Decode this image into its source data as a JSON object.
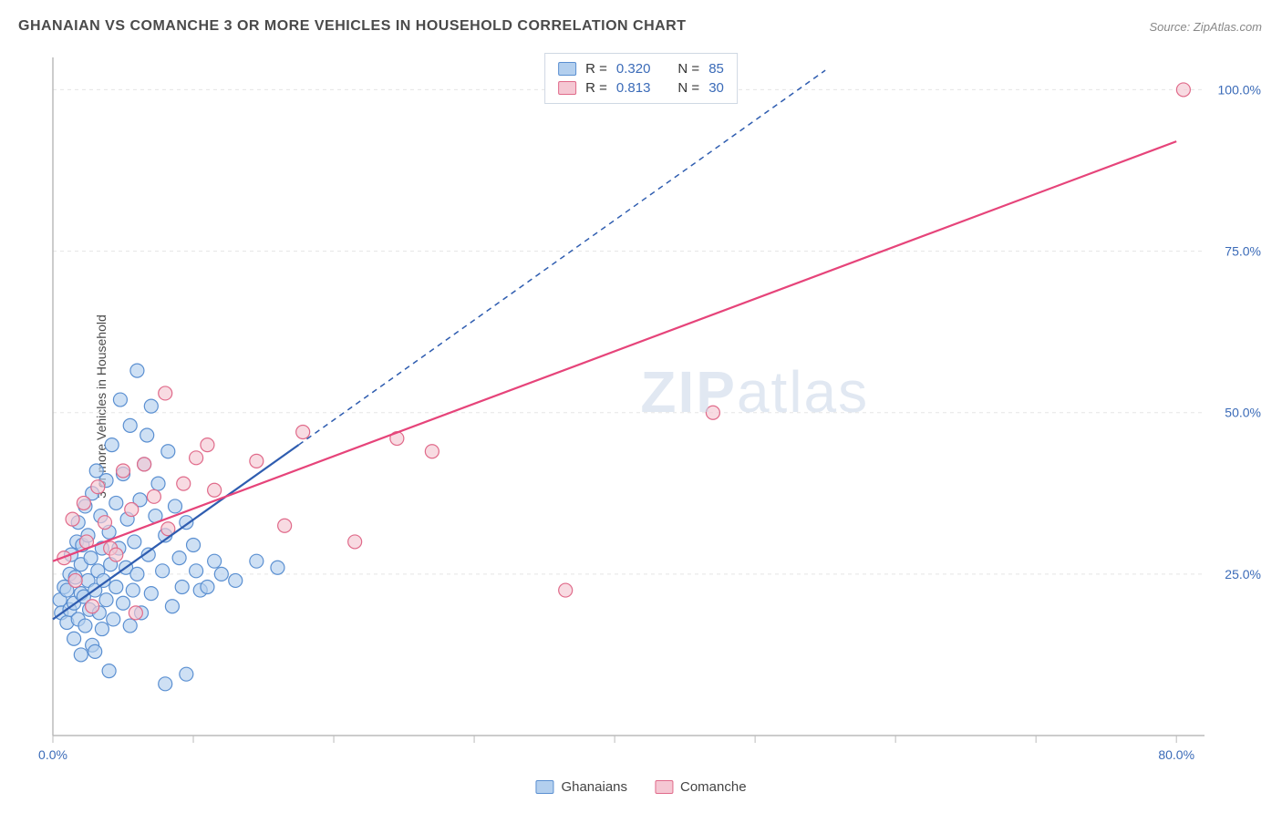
{
  "title": "GHANAIAN VS COMANCHE 3 OR MORE VEHICLES IN HOUSEHOLD CORRELATION CHART",
  "source": "Source: ZipAtlas.com",
  "ylabel": "3 or more Vehicles in Household",
  "watermark_a": "ZIP",
  "watermark_b": "atlas",
  "chart": {
    "type": "scatter",
    "background_color": "#ffffff",
    "grid_color": "#e5e5e5",
    "axis_color": "#bbbbbb",
    "xlim": [
      0,
      82
    ],
    "ylim": [
      0,
      105
    ],
    "x_ticks": [
      0,
      10,
      20,
      30,
      40,
      50,
      60,
      70,
      80
    ],
    "x_tick_labels": [
      "0.0%",
      "",
      "",
      "",
      "",
      "",
      "",
      "",
      "80.0%"
    ],
    "y_ticks": [
      25,
      50,
      75,
      100
    ],
    "y_tick_labels": [
      "25.0%",
      "50.0%",
      "75.0%",
      "100.0%"
    ],
    "marker_radius": 7.5,
    "marker_stroke_width": 1.2,
    "line_width": 2.2,
    "dash_pattern": "6 5",
    "series": [
      {
        "key": "ghanaians",
        "label": "Ghanaians",
        "fill": "#b3cfee",
        "stroke": "#5a8fd1",
        "line_color": "#2f5db0",
        "R": "0.320",
        "N": "85",
        "trend_solid": {
          "x1": 0,
          "y1": 18,
          "x2": 17.5,
          "y2": 45
        },
        "trend_dash": {
          "x1": 17.5,
          "y1": 45,
          "x2": 55,
          "y2": 103
        },
        "points": [
          [
            0.5,
            21
          ],
          [
            0.6,
            19
          ],
          [
            0.8,
            23
          ],
          [
            1.0,
            17.5
          ],
          [
            1.0,
            22.5
          ],
          [
            1.2,
            25
          ],
          [
            1.2,
            19.5
          ],
          [
            1.3,
            28
          ],
          [
            1.5,
            20.5
          ],
          [
            1.5,
            15
          ],
          [
            1.6,
            24.5
          ],
          [
            1.7,
            30
          ],
          [
            1.8,
            18
          ],
          [
            1.8,
            33
          ],
          [
            2.0,
            22
          ],
          [
            2.0,
            26.5
          ],
          [
            2.0,
            12.5
          ],
          [
            2.1,
            29.5
          ],
          [
            2.2,
            21.5
          ],
          [
            2.3,
            35.5
          ],
          [
            2.3,
            17
          ],
          [
            2.5,
            24
          ],
          [
            2.5,
            31
          ],
          [
            2.6,
            19.5
          ],
          [
            2.7,
            27.5
          ],
          [
            2.8,
            14
          ],
          [
            2.8,
            37.5
          ],
          [
            3.0,
            22.5
          ],
          [
            3.0,
            13
          ],
          [
            3.1,
            41
          ],
          [
            3.2,
            25.5
          ],
          [
            3.3,
            19
          ],
          [
            3.4,
            34
          ],
          [
            3.5,
            29
          ],
          [
            3.5,
            16.5
          ],
          [
            3.6,
            24
          ],
          [
            3.8,
            39.5
          ],
          [
            3.8,
            21
          ],
          [
            4.0,
            31.5
          ],
          [
            4.0,
            10
          ],
          [
            4.1,
            26.5
          ],
          [
            4.2,
            45
          ],
          [
            4.3,
            18
          ],
          [
            4.5,
            36
          ],
          [
            4.5,
            23
          ],
          [
            4.7,
            29
          ],
          [
            4.8,
            52
          ],
          [
            5.0,
            20.5
          ],
          [
            5.0,
            40.5
          ],
          [
            5.2,
            26
          ],
          [
            5.3,
            33.5
          ],
          [
            5.5,
            17
          ],
          [
            5.5,
            48
          ],
          [
            5.7,
            22.5
          ],
          [
            5.8,
            30
          ],
          [
            6.0,
            56.5
          ],
          [
            6.0,
            25
          ],
          [
            6.2,
            36.5
          ],
          [
            6.3,
            19
          ],
          [
            6.5,
            42
          ],
          [
            6.7,
            46.5
          ],
          [
            6.8,
            28
          ],
          [
            7.0,
            22
          ],
          [
            7.0,
            51
          ],
          [
            7.3,
            34
          ],
          [
            7.5,
            39
          ],
          [
            7.8,
            25.5
          ],
          [
            8.0,
            31
          ],
          [
            8.0,
            8
          ],
          [
            8.2,
            44
          ],
          [
            8.5,
            20
          ],
          [
            8.7,
            35.5
          ],
          [
            9.0,
            27.5
          ],
          [
            9.2,
            23
          ],
          [
            9.5,
            33
          ],
          [
            9.5,
            9.5
          ],
          [
            10.0,
            29.5
          ],
          [
            10.2,
            25.5
          ],
          [
            10.5,
            22.5
          ],
          [
            11.0,
            23
          ],
          [
            11.5,
            27
          ],
          [
            12.0,
            25
          ],
          [
            13.0,
            24
          ],
          [
            14.5,
            27
          ],
          [
            16.0,
            26
          ]
        ]
      },
      {
        "key": "comanche",
        "label": "Comanche",
        "fill": "#f5c7d3",
        "stroke": "#e06a8a",
        "line_color": "#e6447a",
        "R": "0.813",
        "N": "30",
        "trend_solid": {
          "x1": 0,
          "y1": 27,
          "x2": 80,
          "y2": 92
        },
        "trend_dash": null,
        "points": [
          [
            0.8,
            27.5
          ],
          [
            1.4,
            33.5
          ],
          [
            1.6,
            24
          ],
          [
            2.2,
            36
          ],
          [
            2.4,
            30
          ],
          [
            2.8,
            20
          ],
          [
            3.2,
            38.5
          ],
          [
            3.7,
            33
          ],
          [
            4.1,
            29
          ],
          [
            4.5,
            28
          ],
          [
            5.0,
            41
          ],
          [
            5.6,
            35
          ],
          [
            5.9,
            19
          ],
          [
            6.5,
            42
          ],
          [
            7.2,
            37
          ],
          [
            8.0,
            53
          ],
          [
            8.2,
            32
          ],
          [
            9.3,
            39
          ],
          [
            10.2,
            43
          ],
          [
            11.0,
            45
          ],
          [
            11.5,
            38
          ],
          [
            14.5,
            42.5
          ],
          [
            16.5,
            32.5
          ],
          [
            17.8,
            47
          ],
          [
            21.5,
            30
          ],
          [
            24.5,
            46
          ],
          [
            27.0,
            44
          ],
          [
            36.5,
            22.5
          ],
          [
            47.0,
            50
          ],
          [
            80.5,
            100
          ]
        ]
      }
    ]
  },
  "stats_labels": {
    "R": "R =",
    "N": "N ="
  }
}
